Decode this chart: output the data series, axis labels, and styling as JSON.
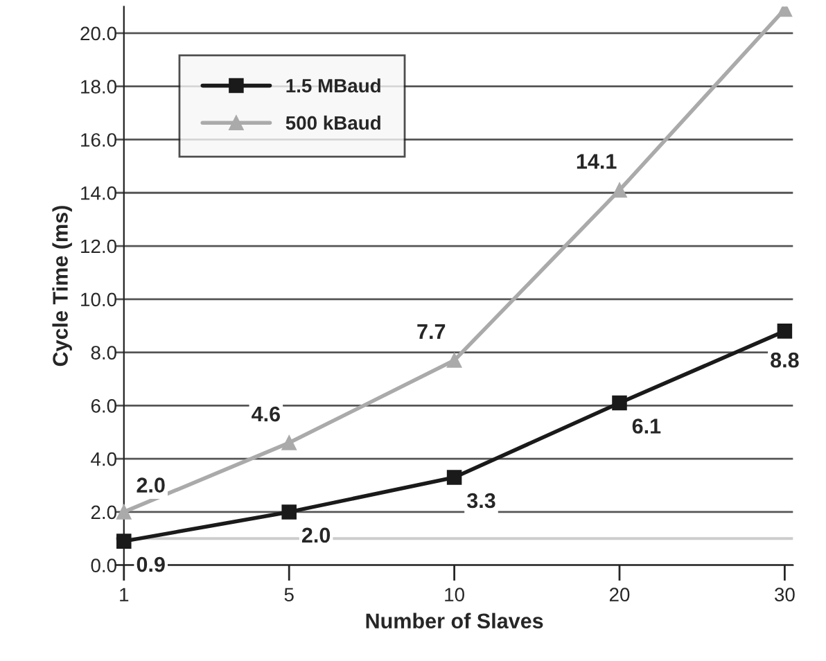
{
  "chart_data": {
    "type": "line",
    "xlabel": "Number of Slaves",
    "ylabel": "Cycle Time (ms)",
    "categories": [
      "1",
      "5",
      "10",
      "20",
      "30"
    ],
    "series": [
      {
        "name": "1.5 MBaud",
        "color": "#1a1a1a",
        "marker": "square",
        "values": [
          0.9,
          2.0,
          3.3,
          6.1,
          8.8
        ],
        "value_labels": [
          "0.9",
          "2.0",
          "3.3",
          "6.1",
          "8.8"
        ]
      },
      {
        "name": "500 kBaud",
        "color": "#aaaaaa",
        "marker": "triangle",
        "values": [
          2.0,
          4.6,
          7.7,
          14.1,
          20.9
        ],
        "value_labels": [
          "2.0",
          "4.6",
          "7.7",
          "14.1",
          null
        ]
      }
    ],
    "ylim": [
      0,
      21
    ],
    "yticks": [
      {
        "value": 0,
        "label": "0.0"
      },
      {
        "value": 2,
        "label": "2.0"
      },
      {
        "value": 4,
        "label": "4.0"
      },
      {
        "value": 6,
        "label": "6.0"
      },
      {
        "value": 8,
        "label": "8.0"
      },
      {
        "value": 10,
        "label": "10.0"
      },
      {
        "value": 12,
        "label": "12.0"
      },
      {
        "value": 14,
        "label": "14.0"
      },
      {
        "value": 16,
        "label": "16.0"
      },
      {
        "value": 18,
        "label": "18.0"
      },
      {
        "value": 20,
        "label": "20.0"
      }
    ],
    "ref_lines": [
      {
        "axis": "y",
        "value": 1.0,
        "color": "#cccccc"
      }
    ],
    "grid": "y",
    "legend": "top left",
    "line_style": "solid"
  }
}
